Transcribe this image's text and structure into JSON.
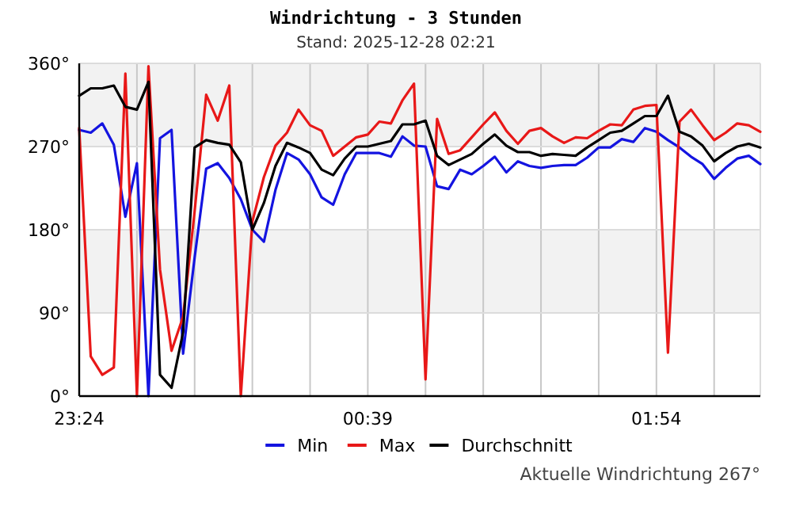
{
  "chart_data": {
    "type": "line",
    "title": "Windrichtung - 3 Stunden",
    "subtitle": "Stand: 2025-12-28 02:21",
    "annotations": [
      "Aktuelle Windrichtung 267°"
    ],
    "x": [
      "2025-12-27T23:24",
      "2025-12-27T23:27",
      "2025-12-27T23:30",
      "2025-12-27T23:33",
      "2025-12-27T23:36",
      "2025-12-27T23:39",
      "2025-12-27T23:42",
      "2025-12-27T23:45",
      "2025-12-27T23:48",
      "2025-12-27T23:51",
      "2025-12-27T23:54",
      "2025-12-27T23:57",
      "2025-12-28T00:00",
      "2025-12-28T00:03",
      "2025-12-28T00:06",
      "2025-12-28T00:09",
      "2025-12-28T00:12",
      "2025-12-28T00:15",
      "2025-12-28T00:18",
      "2025-12-28T00:21",
      "2025-12-28T00:24",
      "2025-12-28T00:27",
      "2025-12-28T00:30",
      "2025-12-28T00:33",
      "2025-12-28T00:36",
      "2025-12-28T00:39",
      "2025-12-28T00:42",
      "2025-12-28T00:45",
      "2025-12-28T00:48",
      "2025-12-28T00:51",
      "2025-12-28T00:54",
      "2025-12-28T00:57",
      "2025-12-28T01:00",
      "2025-12-28T01:03",
      "2025-12-28T01:06",
      "2025-12-28T01:09",
      "2025-12-28T01:12",
      "2025-12-28T01:15",
      "2025-12-28T01:18",
      "2025-12-28T01:21",
      "2025-12-28T01:24",
      "2025-12-28T01:27",
      "2025-12-28T01:30",
      "2025-12-28T01:33",
      "2025-12-28T01:36",
      "2025-12-28T01:39",
      "2025-12-28T01:42",
      "2025-12-28T01:45",
      "2025-12-28T01:48",
      "2025-12-28T01:51",
      "2025-12-28T01:54",
      "2025-12-28T01:57",
      "2025-12-28T02:00",
      "2025-12-28T02:03",
      "2025-12-28T02:06",
      "2025-12-28T02:09",
      "2025-12-28T02:12",
      "2025-12-28T02:15",
      "2025-12-28T02:18",
      "2025-12-28T02:21"
    ],
    "series": [
      {
        "name": "Min",
        "color": "#1414e0",
        "values": [
          288,
          285,
          295,
          272,
          194,
          252,
          0,
          279,
          288,
          46,
          150,
          246,
          252,
          236,
          213,
          180,
          167,
          223,
          263,
          256,
          240,
          215,
          207,
          240,
          263,
          263,
          263,
          259,
          281,
          271,
          270,
          227,
          224,
          245,
          240,
          249,
          259,
          242,
          254,
          249,
          247,
          249,
          250,
          250,
          258,
          269,
          269,
          278,
          275,
          290,
          286,
          277,
          269,
          259,
          251,
          235,
          247,
          257,
          260,
          251
        ]
      },
      {
        "name": "Max",
        "color": "#e81818",
        "values": [
          290,
          43,
          23,
          31,
          349,
          0,
          357,
          137,
          49,
          86,
          200,
          326,
          298,
          336,
          0,
          189,
          237,
          271,
          285,
          310,
          293,
          287,
          260,
          270,
          280,
          283,
          297,
          295,
          320,
          338,
          18,
          300,
          262,
          266,
          280,
          294,
          307,
          287,
          273,
          287,
          290,
          281,
          274,
          280,
          279,
          287,
          294,
          293,
          310,
          314,
          315,
          47,
          297,
          310,
          293,
          277,
          285,
          295,
          293,
          286
        ]
      },
      {
        "name": "Durchschnitt",
        "color": "#000000",
        "values": [
          325,
          333,
          333,
          336,
          313,
          310,
          340,
          23,
          9,
          69,
          269,
          277,
          274,
          272,
          253,
          180,
          209,
          249,
          274,
          269,
          263,
          245,
          239,
          257,
          270,
          270,
          273,
          276,
          294,
          294,
          298,
          260,
          250,
          256,
          262,
          273,
          283,
          271,
          264,
          264,
          260,
          262,
          261,
          260,
          269,
          277,
          285,
          287,
          295,
          303,
          303,
          325,
          286,
          281,
          271,
          254,
          263,
          270,
          273,
          269
        ]
      }
    ],
    "xlim": [
      "2025-12-27T23:24",
      "2025-12-28T02:21"
    ],
    "xticks": [
      {
        "value": "2025-12-27T23:24",
        "label": "23:24"
      },
      {
        "value": "2025-12-27T23:39",
        "label": null
      },
      {
        "value": "2025-12-27T23:54",
        "label": null
      },
      {
        "value": "2025-12-28T00:09",
        "label": null
      },
      {
        "value": "2025-12-28T00:24",
        "label": null
      },
      {
        "value": "2025-12-28T00:39",
        "label": "00:39"
      },
      {
        "value": "2025-12-28T00:54",
        "label": null
      },
      {
        "value": "2025-12-28T01:09",
        "label": null
      },
      {
        "value": "2025-12-28T01:24",
        "label": null
      },
      {
        "value": "2025-12-28T01:39",
        "label": null
      },
      {
        "value": "2025-12-28T01:54",
        "label": "01:54"
      },
      {
        "value": "2025-12-28T02:09",
        "label": null
      }
    ],
    "ylim": [
      0,
      360
    ],
    "yticks": [
      {
        "value": 0,
        "label": "0°"
      },
      {
        "value": 90,
        "label": "90°"
      },
      {
        "value": 180,
        "label": "180°"
      },
      {
        "value": 270,
        "label": "270°"
      },
      {
        "value": 360,
        "label": "360°"
      }
    ],
    "bands": [
      {
        "axis": "y",
        "from": 90,
        "to": 180,
        "color": "#f2f2f2"
      },
      {
        "axis": "y",
        "from": 270,
        "to": 360,
        "color": "#f2f2f2"
      }
    ],
    "grid": true,
    "legend": "bottom",
    "line_style": "solid",
    "marker": "none"
  }
}
